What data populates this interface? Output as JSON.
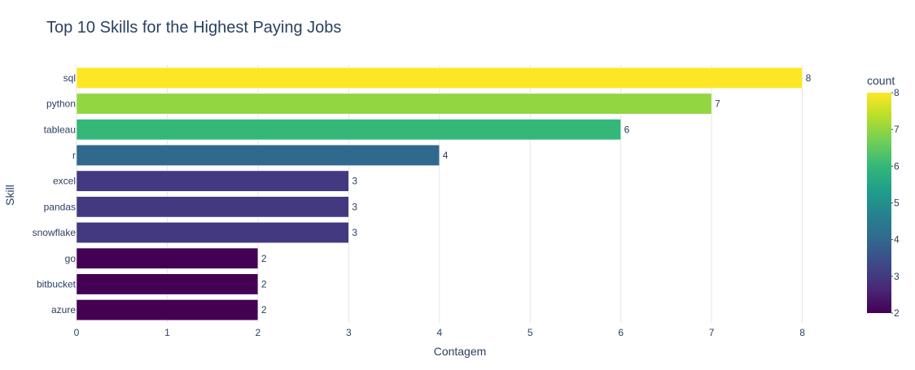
{
  "chart_data": {
    "type": "bar",
    "orientation": "horizontal",
    "title": "Top 10 Skills for the Highest Paying Jobs",
    "xlabel": "Contagem",
    "ylabel": "Skill",
    "categories": [
      "sql",
      "python",
      "tableau",
      "r",
      "excel",
      "pandas",
      "snowflake",
      "go",
      "bitbucket",
      "azure"
    ],
    "values": [
      8,
      7,
      6,
      4,
      3,
      3,
      3,
      2,
      2,
      2
    ],
    "data_labels": [
      "8",
      "7",
      "6",
      "4",
      "3",
      "3",
      "3",
      "2",
      "2",
      "2"
    ],
    "xlim": [
      0,
      8.3
    ],
    "x_ticks": [
      "0",
      "1",
      "2",
      "3",
      "4",
      "5",
      "6",
      "7",
      "8"
    ],
    "grid": "vertical",
    "colorbar": {
      "title": "count",
      "colorscale": "Viridis",
      "range": [
        2,
        8
      ],
      "ticks": [
        "2",
        "3",
        "4",
        "5",
        "6",
        "7",
        "8"
      ]
    },
    "colors": {
      "title": "#2a3f5f",
      "axis_text": "#2a3f5f",
      "grid": "#e5e5e5",
      "viridis": [
        "#440154",
        "#482878",
        "#3e4989",
        "#31688e",
        "#26828e",
        "#1f9e89",
        "#35b779",
        "#6ece58",
        "#b5de2b",
        "#fde725"
      ]
    }
  }
}
